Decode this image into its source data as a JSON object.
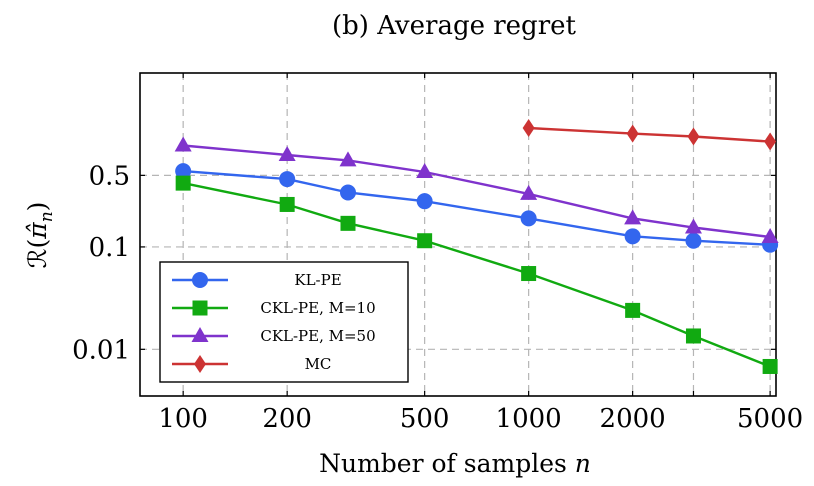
{
  "chart_data": {
    "type": "line",
    "title": "(b) Average regret",
    "xlabel": "Number of samples n",
    "ylabel": "R(π̂n)",
    "x_scale": "log",
    "y_scale": "log",
    "xlim": [
      75,
      5200
    ],
    "ylim": [
      0.0035,
      5.0
    ],
    "xticks": [
      100,
      200,
      500,
      1000,
      2000,
      5000
    ],
    "xtick_labels": [
      "100",
      "200",
      "500",
      "1000",
      "2000",
      "5000"
    ],
    "yticks": [
      0.01,
      0.1,
      0.5
    ],
    "ytick_labels": [
      "0.01",
      "0.1",
      "0.5"
    ],
    "xgrid": [
      100,
      200,
      500,
      1000,
      2000,
      3000,
      5000
    ],
    "ygrid": [
      0.01,
      0.1,
      0.5
    ],
    "grid": true,
    "legend_position": "bottom-left",
    "series": [
      {
        "name": "KL-PE",
        "color": "#3366ee",
        "marker": "circle",
        "x": [
          100,
          200,
          300,
          500,
          1000,
          2000,
          3000,
          5000
        ],
        "y": [
          0.55,
          0.46,
          0.34,
          0.28,
          0.19,
          0.127,
          0.115,
          0.105
        ]
      },
      {
        "name": "CKL-PE, M=10",
        "color": "#11aa11",
        "marker": "square",
        "x": [
          100,
          200,
          300,
          500,
          1000,
          2000,
          3000,
          5000
        ],
        "y": [
          0.42,
          0.26,
          0.17,
          0.115,
          0.055,
          0.024,
          0.0135,
          0.0068
        ]
      },
      {
        "name": "CKL-PE, M=50",
        "color": "#7f33cc",
        "marker": "triangle",
        "x": [
          100,
          200,
          300,
          500,
          1000,
          2000,
          3000,
          5000
        ],
        "y": [
          0.98,
          0.79,
          0.7,
          0.54,
          0.33,
          0.19,
          0.155,
          0.125
        ]
      },
      {
        "name": "MC",
        "color": "#cc3333",
        "marker": "diamond",
        "x": [
          1000,
          2000,
          3000,
          5000
        ],
        "y": [
          1.45,
          1.28,
          1.2,
          1.07
        ]
      }
    ]
  }
}
